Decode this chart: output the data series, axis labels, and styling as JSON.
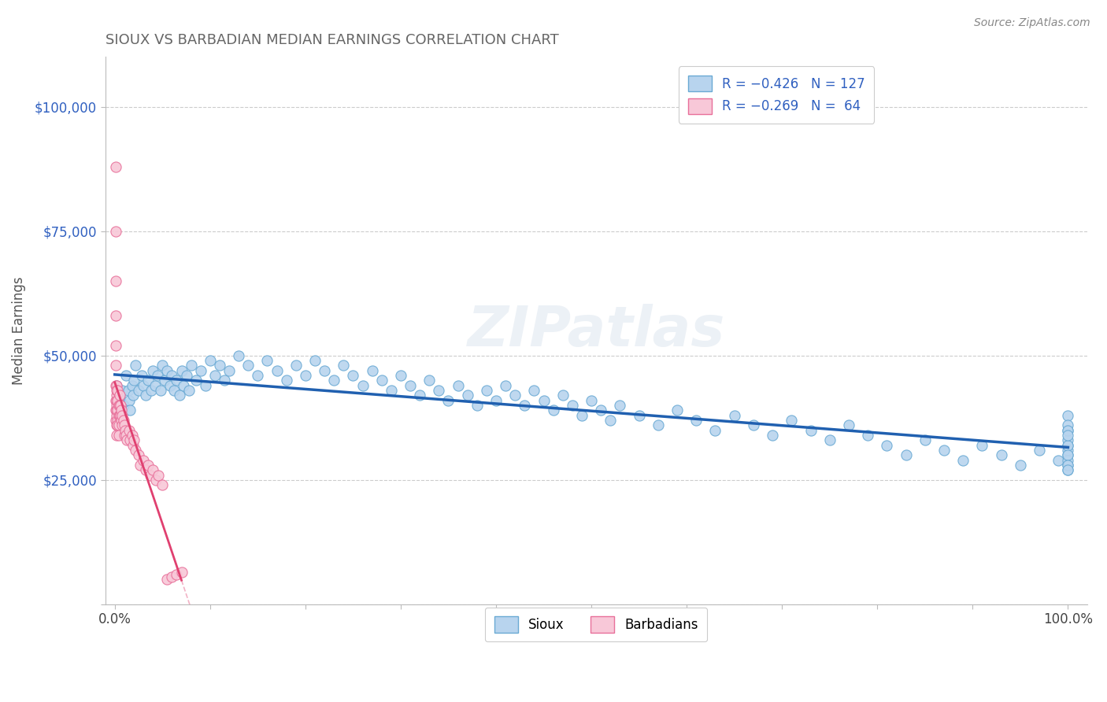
{
  "title": "SIOUX VS BARBADIAN MEDIAN EARNINGS CORRELATION CHART",
  "source": "Source: ZipAtlas.com",
  "ylabel": "Median Earnings",
  "xlim": [
    -0.01,
    1.02
  ],
  "ylim": [
    0,
    110000
  ],
  "yticks": [
    0,
    25000,
    50000,
    75000,
    100000
  ],
  "ytick_labels": [
    "",
    "$25,000",
    "$50,000",
    "$75,000",
    "$100,000"
  ],
  "xticks": [
    0.0,
    0.1,
    0.2,
    0.3,
    0.4,
    0.5,
    0.6,
    0.7,
    0.8,
    0.9,
    1.0
  ],
  "xtick_labels": [
    "0.0%",
    "",
    "",
    "",
    "",
    "",
    "",
    "",
    "",
    "",
    "100.0%"
  ],
  "sioux_color": "#b8d4ee",
  "sioux_edge": "#6aaad4",
  "barbadian_color": "#f8c8d8",
  "barbadian_edge": "#e8709a",
  "trend_sioux_color": "#2060b0",
  "trend_barbadian_color": "#e04070",
  "background_color": "#ffffff",
  "grid_color": "#cccccc",
  "title_color": "#666666",
  "axis_color": "#3060c0",
  "sioux_x": [
    0.002,
    0.003,
    0.004,
    0.005,
    0.006,
    0.007,
    0.008,
    0.009,
    0.012,
    0.014,
    0.015,
    0.016,
    0.018,
    0.019,
    0.02,
    0.022,
    0.025,
    0.028,
    0.03,
    0.032,
    0.035,
    0.038,
    0.04,
    0.042,
    0.045,
    0.048,
    0.05,
    0.052,
    0.055,
    0.058,
    0.06,
    0.062,
    0.065,
    0.068,
    0.07,
    0.072,
    0.075,
    0.078,
    0.08,
    0.085,
    0.09,
    0.095,
    0.1,
    0.105,
    0.11,
    0.115,
    0.12,
    0.13,
    0.14,
    0.15,
    0.16,
    0.17,
    0.18,
    0.19,
    0.2,
    0.21,
    0.22,
    0.23,
    0.24,
    0.25,
    0.26,
    0.27,
    0.28,
    0.29,
    0.3,
    0.31,
    0.32,
    0.33,
    0.34,
    0.35,
    0.36,
    0.37,
    0.38,
    0.39,
    0.4,
    0.41,
    0.42,
    0.43,
    0.44,
    0.45,
    0.46,
    0.47,
    0.48,
    0.49,
    0.5,
    0.51,
    0.52,
    0.53,
    0.55,
    0.57,
    0.59,
    0.61,
    0.63,
    0.65,
    0.67,
    0.69,
    0.71,
    0.73,
    0.75,
    0.77,
    0.79,
    0.81,
    0.83,
    0.85,
    0.87,
    0.89,
    0.91,
    0.93,
    0.95,
    0.97,
    0.99,
    1.0,
    1.0,
    1.0,
    1.0,
    1.0,
    1.0,
    1.0,
    1.0,
    1.0,
    1.0,
    1.0,
    1.0,
    1.0,
    1.0,
    1.0,
    1.0
  ],
  "sioux_y": [
    44000,
    39000,
    37000,
    42000,
    41000,
    38000,
    43000,
    40000,
    46000,
    43000,
    41000,
    39000,
    44000,
    42000,
    45000,
    48000,
    43000,
    46000,
    44000,
    42000,
    45000,
    43000,
    47000,
    44000,
    46000,
    43000,
    48000,
    45000,
    47000,
    44000,
    46000,
    43000,
    45000,
    42000,
    47000,
    44000,
    46000,
    43000,
    48000,
    45000,
    47000,
    44000,
    49000,
    46000,
    48000,
    45000,
    47000,
    50000,
    48000,
    46000,
    49000,
    47000,
    45000,
    48000,
    46000,
    49000,
    47000,
    45000,
    48000,
    46000,
    44000,
    47000,
    45000,
    43000,
    46000,
    44000,
    42000,
    45000,
    43000,
    41000,
    44000,
    42000,
    40000,
    43000,
    41000,
    44000,
    42000,
    40000,
    43000,
    41000,
    39000,
    42000,
    40000,
    38000,
    41000,
    39000,
    37000,
    40000,
    38000,
    36000,
    39000,
    37000,
    35000,
    38000,
    36000,
    34000,
    37000,
    35000,
    33000,
    36000,
    34000,
    32000,
    30000,
    33000,
    31000,
    29000,
    32000,
    30000,
    28000,
    31000,
    29000,
    35000,
    30000,
    38000,
    28000,
    32000,
    36000,
    33000,
    27000,
    31000,
    29000,
    35000,
    32000,
    30000,
    28000,
    34000,
    27000
  ],
  "barbadian_x": [
    0.001,
    0.001,
    0.001,
    0.001,
    0.001,
    0.001,
    0.001,
    0.001,
    0.001,
    0.001,
    0.002,
    0.002,
    0.002,
    0.002,
    0.002,
    0.002,
    0.002,
    0.002,
    0.002,
    0.003,
    0.003,
    0.003,
    0.003,
    0.003,
    0.004,
    0.004,
    0.004,
    0.004,
    0.005,
    0.005,
    0.005,
    0.006,
    0.006,
    0.007,
    0.007,
    0.008,
    0.008,
    0.009,
    0.01,
    0.01,
    0.011,
    0.012,
    0.013,
    0.015,
    0.016,
    0.018,
    0.019,
    0.02,
    0.022,
    0.025,
    0.027,
    0.03,
    0.032,
    0.035,
    0.037,
    0.04,
    0.043,
    0.046,
    0.05,
    0.055,
    0.06,
    0.065,
    0.07
  ],
  "barbadian_y": [
    88000,
    75000,
    65000,
    58000,
    52000,
    48000,
    44000,
    41000,
    39000,
    37000,
    44000,
    42000,
    40000,
    38000,
    36000,
    34000,
    43000,
    41000,
    39000,
    43000,
    41000,
    39000,
    37000,
    36000,
    40000,
    38000,
    36000,
    34000,
    42000,
    40000,
    38000,
    40000,
    38000,
    39000,
    37000,
    38000,
    36000,
    37000,
    36000,
    34000,
    35000,
    34000,
    33000,
    35000,
    33000,
    34000,
    32000,
    33000,
    31000,
    30000,
    28000,
    29000,
    27000,
    28000,
    26000,
    27000,
    25000,
    26000,
    24000,
    5000,
    5500,
    6000,
    6500
  ]
}
